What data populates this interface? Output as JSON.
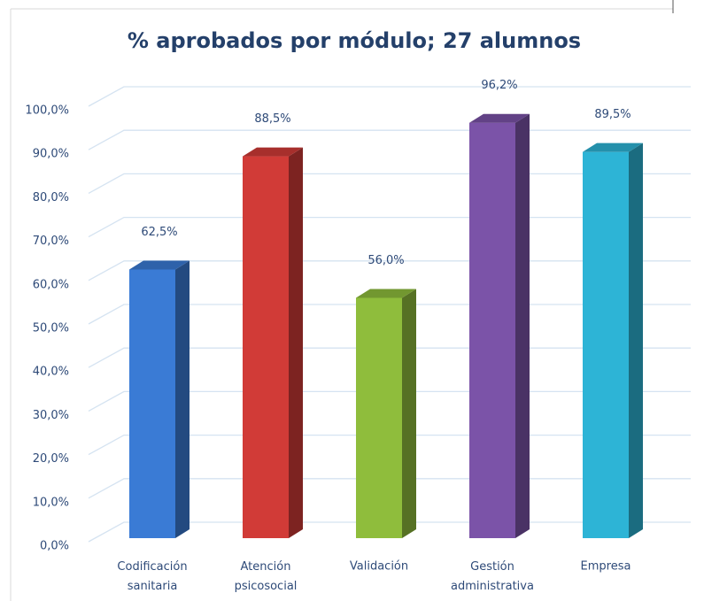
{
  "chart_data": {
    "type": "bar3d",
    "title": "% aprobados por módulo; 27 alumnos",
    "categories": [
      "Codificación sanitaria",
      "Atención psicosocial",
      "Validación",
      "Gestión administrativa",
      "Empresa"
    ],
    "values": [
      62.5,
      88.5,
      56.0,
      96.2,
      89.5
    ],
    "value_labels": [
      "62,5%",
      "88,5%",
      "56,0%",
      "96,2%",
      "89,5%"
    ],
    "colors": [
      "#3a7bd5",
      "#d13b37",
      "#8fbd3c",
      "#7b53a8",
      "#2db4d6"
    ],
    "ylim": [
      0,
      100
    ],
    "yticks": [
      {
        "value": 0,
        "label": "0,0%"
      },
      {
        "value": 10,
        "label": "10,0%"
      },
      {
        "value": 20,
        "label": "20,0%"
      },
      {
        "value": 30,
        "label": "30,0%"
      },
      {
        "value": 40,
        "label": "40,0%"
      },
      {
        "value": 50,
        "label": "50,0%"
      },
      {
        "value": 60,
        "label": "60,0%"
      },
      {
        "value": 70,
        "label": "70,0%"
      },
      {
        "value": 80,
        "label": "80,0%"
      },
      {
        "value": 90,
        "label": "90,0%"
      },
      {
        "value": 100,
        "label": "100,0%"
      }
    ],
    "grid": true
  }
}
